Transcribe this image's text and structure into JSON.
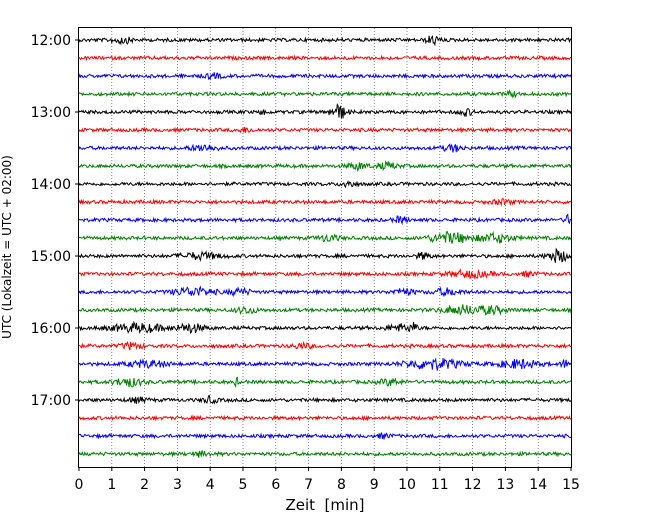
{
  "chart_data": {
    "type": "line",
    "chart_kind": "helicorder seismogram",
    "title": "",
    "xlabel": "Zeit  [min]",
    "ylabel": "UTC (Lokalzeit = UTC + 02:00)",
    "xlim": [
      0,
      15
    ],
    "x_ticks": [
      0,
      1,
      2,
      3,
      4,
      5,
      6,
      7,
      8,
      9,
      10,
      11,
      12,
      13,
      14,
      15
    ],
    "x_tick_labels": [
      "0",
      "1",
      "2",
      "3",
      "4",
      "5",
      "6",
      "7",
      "8",
      "9",
      "10",
      "11",
      "12",
      "13",
      "14",
      "15"
    ],
    "y_tick_labels": [
      "12:00",
      "13:00",
      "14:00",
      "15:00",
      "16:00",
      "17:00"
    ],
    "grid": "vertical dotted lines at each minute",
    "trace_colors": [
      "#000000",
      "#ff0000",
      "#0000ff",
      "#008000"
    ],
    "trace_start_times": [
      "12:00",
      "12:15",
      "12:30",
      "12:45",
      "13:00",
      "13:15",
      "13:30",
      "13:45",
      "14:00",
      "14:15",
      "14:30",
      "14:45",
      "15:00",
      "15:15",
      "15:30",
      "15:45",
      "16:00",
      "16:15",
      "16:30",
      "16:45",
      "17:00",
      "17:15",
      "17:30",
      "17:45"
    ],
    "trace_duration_min": 15
  }
}
